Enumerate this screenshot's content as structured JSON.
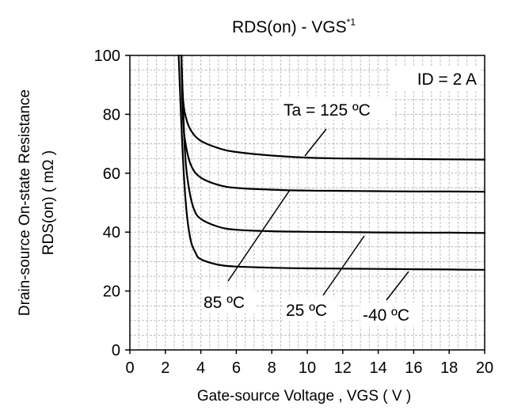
{
  "chart_data": {
    "type": "line",
    "title": "RDS(on) - VGS",
    "title_superscript": "*1",
    "xlabel": "Gate-source Voltage , VGS ( V )",
    "ylabel_line1": "Drain-source On-state Resistance",
    "ylabel_line2": "RDS(on) ( mΩ )",
    "xlim": [
      0,
      20
    ],
    "ylim": [
      0,
      100
    ],
    "x_ticks": [
      "0",
      "2",
      "4",
      "6",
      "8",
      "10",
      "12",
      "14",
      "16",
      "18",
      "20"
    ],
    "y_ticks": [
      "0",
      "20",
      "40",
      "60",
      "80",
      "100"
    ],
    "grid": true,
    "series": [
      {
        "name": "Ta = 125 ºC",
        "points": [
          [
            2.9,
            100
          ],
          [
            3.0,
            85
          ],
          [
            3.2,
            78
          ],
          [
            3.5,
            74
          ],
          [
            4.0,
            71
          ],
          [
            5.0,
            68.5
          ],
          [
            6.0,
            67.2
          ],
          [
            8.0,
            66.0
          ],
          [
            10.0,
            65.3
          ],
          [
            12.0,
            65.0
          ],
          [
            14.0,
            64.9
          ],
          [
            16.0,
            64.8
          ],
          [
            18.0,
            64.7
          ],
          [
            20.0,
            64.6
          ]
        ]
      },
      {
        "name": "85 ºC",
        "points": [
          [
            2.9,
            100
          ],
          [
            3.0,
            78
          ],
          [
            3.2,
            68
          ],
          [
            3.5,
            62
          ],
          [
            4.0,
            58.5
          ],
          [
            5.0,
            56.0
          ],
          [
            6.0,
            55.0
          ],
          [
            8.0,
            54.4
          ],
          [
            10.0,
            54.1
          ],
          [
            12.0,
            54.0
          ],
          [
            14.0,
            53.9
          ],
          [
            16.0,
            53.8
          ],
          [
            18.0,
            53.8
          ],
          [
            20.0,
            53.7
          ]
        ]
      },
      {
        "name": "25 ºC",
        "points": [
          [
            2.9,
            100
          ],
          [
            3.1,
            68
          ],
          [
            3.3,
            56
          ],
          [
            3.6,
            48
          ],
          [
            4.0,
            44.5
          ],
          [
            5.0,
            41.8
          ],
          [
            6.0,
            40.8
          ],
          [
            8.0,
            40.3
          ],
          [
            10.0,
            40.1
          ],
          [
            12.0,
            40.0
          ],
          [
            14.0,
            39.9
          ],
          [
            16.0,
            39.8
          ],
          [
            18.0,
            39.8
          ],
          [
            20.0,
            39.7
          ]
        ]
      },
      {
        "name": "-40 ºC",
        "points": [
          [
            2.75,
            100
          ],
          [
            2.95,
            70
          ],
          [
            3.15,
            50
          ],
          [
            3.4,
            38
          ],
          [
            3.7,
            33
          ],
          [
            4.0,
            30.8
          ],
          [
            5.0,
            28.9
          ],
          [
            6.0,
            28.3
          ],
          [
            8.0,
            27.9
          ],
          [
            10.0,
            27.7
          ],
          [
            12.0,
            27.6
          ],
          [
            14.0,
            27.5
          ],
          [
            16.0,
            27.4
          ],
          [
            18.0,
            27.3
          ],
          [
            20.0,
            27.2
          ]
        ]
      }
    ],
    "annotations": {
      "id": "ID = 2 A",
      "ta125": "Ta = 125 ºC",
      "ta85": "85 ºC",
      "ta25": "25 ºC",
      "tam40": "-40 ºC"
    },
    "line_color": "#000000",
    "grid_color": "#bdbdbd"
  }
}
